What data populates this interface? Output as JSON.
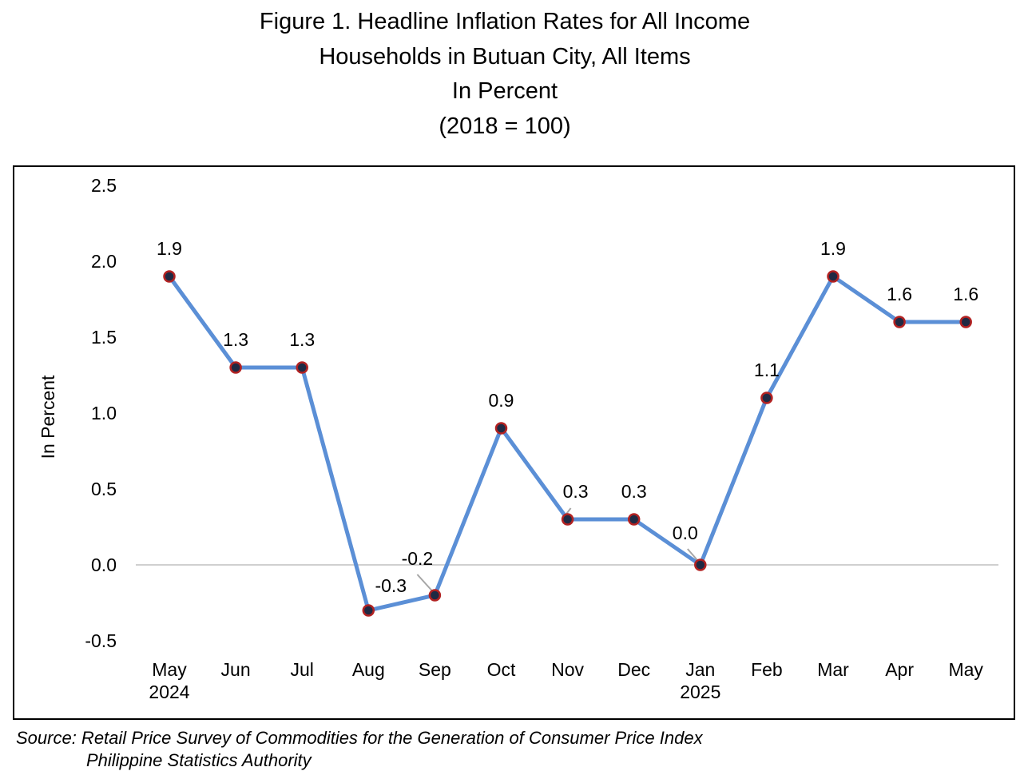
{
  "title_lines": [
    "Figure 1. Headline Inflation Rates for All Income",
    "Households in Butuan City, All Items",
    "In Percent",
    "(2018 = 100)"
  ],
  "source": {
    "line1": "Source: Retail Price Survey of Commodities for the Generation of Consumer Price Index",
    "line2": "Philippine Statistics Authority"
  },
  "chart_data": {
    "type": "line",
    "ylabel": "In Percent",
    "xlabel": "",
    "ylim": [
      -0.5,
      2.5
    ],
    "yticks": [
      "2.5",
      "2.0",
      "1.5",
      "1.0",
      "0.5",
      "0.0",
      "-0.5"
    ],
    "ytick_values": [
      2.5,
      2.0,
      1.5,
      1.0,
      0.5,
      0.0,
      -0.5
    ],
    "categories": [
      {
        "month": "May",
        "year": "2024"
      },
      {
        "month": "Jun",
        "year": ""
      },
      {
        "month": "Jul",
        "year": ""
      },
      {
        "month": "Aug",
        "year": ""
      },
      {
        "month": "Sep",
        "year": ""
      },
      {
        "month": "Oct",
        "year": ""
      },
      {
        "month": "Nov",
        "year": ""
      },
      {
        "month": "Dec",
        "year": ""
      },
      {
        "month": "Jan",
        "year": "2025"
      },
      {
        "month": "Feb",
        "year": ""
      },
      {
        "month": "Mar",
        "year": ""
      },
      {
        "month": "Apr",
        "year": ""
      },
      {
        "month": "May",
        "year": ""
      }
    ],
    "values": [
      1.9,
      1.3,
      1.3,
      -0.3,
      -0.2,
      0.9,
      0.3,
      0.3,
      0.0,
      1.1,
      1.9,
      1.6,
      1.6
    ],
    "data_labels": [
      "1.9",
      "1.3",
      "1.3",
      "-0.3",
      "-0.2",
      "0.9",
      "0.3",
      "0.3",
      "0.0",
      "1.1",
      "1.9",
      "1.6",
      "1.6"
    ],
    "grid": false,
    "zero_line": true,
    "legend": "none",
    "colors": {
      "line": "#5b8fd6",
      "marker_fill": "#1f2a44",
      "marker_edge": "#b22222",
      "zero_line": "#d0d0d0",
      "leader_line": "#a6a6a6"
    }
  }
}
